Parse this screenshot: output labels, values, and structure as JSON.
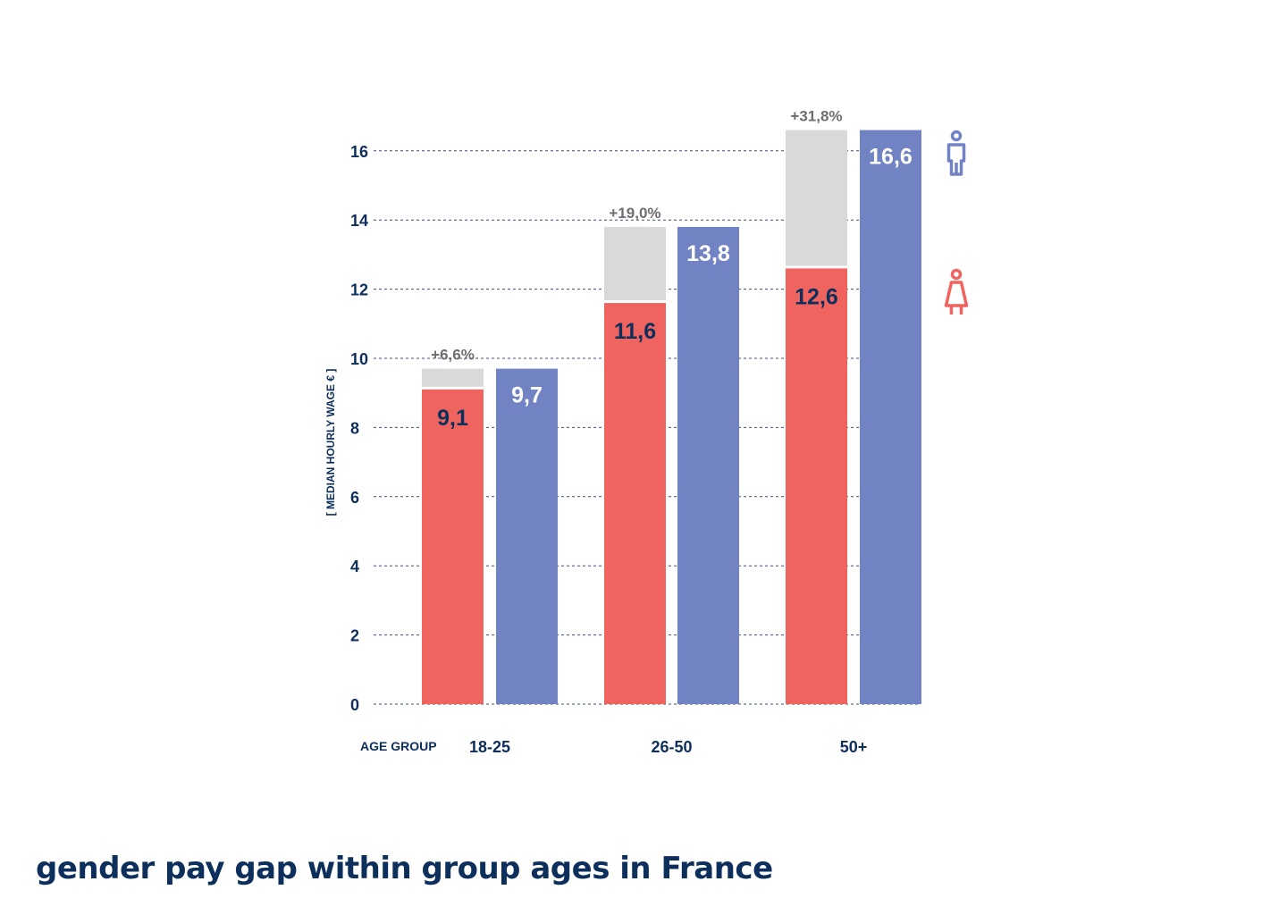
{
  "title": "gender pay gap within group ages in France",
  "colors": {
    "women": "#f06460",
    "men": "#7283c4",
    "gap": "#d9d9d9",
    "text_dark": "#0d2f5c",
    "text_light": "#ffffff",
    "text_gap": "#6e6e6e",
    "grid": "#3a4f7a"
  },
  "chart_data": {
    "type": "bar",
    "ylabel": "[ MEDIAN HOURLY WAGE € ]",
    "xlabel": "AGE GROUP",
    "categories": [
      "18-25",
      "26-50",
      "50+"
    ],
    "series": [
      {
        "name": "women",
        "icon": "woman-icon",
        "values": [
          9.1,
          11.6,
          12.6
        ],
        "labels": [
          "9,1",
          "11,6",
          "12,6"
        ]
      },
      {
        "name": "men",
        "icon": "man-icon",
        "values": [
          9.7,
          13.8,
          16.6
        ],
        "labels": [
          "9,7",
          "13,8",
          "16,6"
        ]
      }
    ],
    "gap_labels": [
      "+6,6%",
      "+19,0%",
      "+31,8%"
    ],
    "yticks": [
      0,
      2,
      4,
      6,
      8,
      10,
      12,
      14,
      16
    ],
    "ylim": [
      0,
      16.6
    ],
    "grid": true,
    "legend": "right"
  }
}
